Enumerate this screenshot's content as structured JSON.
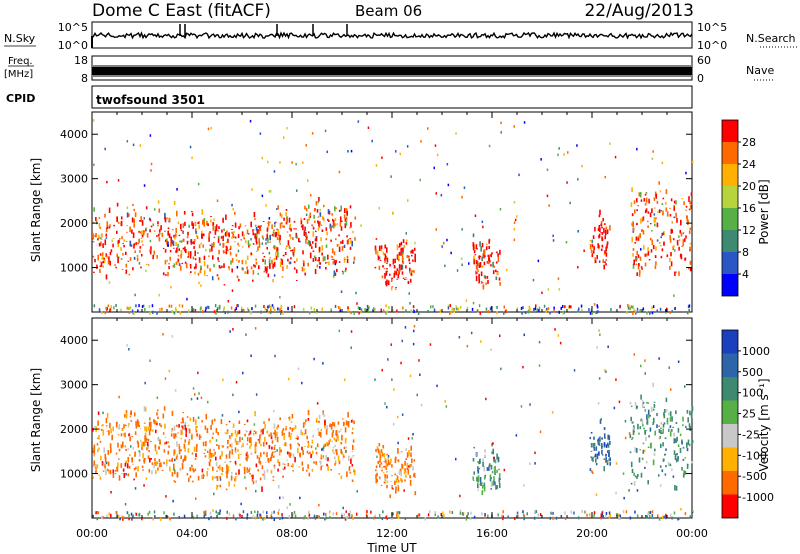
{
  "header": {
    "station": "Dome C East (fitACF)",
    "beam": "Beam 06",
    "date": "22/Aug/2013"
  },
  "strips": {
    "nsky": {
      "label": "N.Sky",
      "ticks": [
        "10^5",
        "10^0"
      ],
      "right_ticks": [
        "10^5",
        "10^0"
      ],
      "right_label": "N.Search"
    },
    "freq": {
      "label_top": "Freq.",
      "label_bottom": "[MHz]",
      "ticks": [
        "18",
        "8"
      ],
      "right_ticks": [
        "60",
        "0"
      ],
      "right_label": "Nave"
    },
    "cpid": {
      "label": "CPID",
      "value": "twofsound 3501"
    }
  },
  "colors": {
    "power_scale": [
      "#0000ff",
      "#2a56c6",
      "#3d8a70",
      "#56b046",
      "#b8d43c",
      "#ffb000",
      "#ff6a00",
      "#ff0000"
    ],
    "velocity_scale": [
      "#1c3fbf",
      "#2e64a8",
      "#3d8a70",
      "#56b046",
      "#c8c8c8",
      "#ffb000",
      "#ff6a00",
      "#ff0000"
    ]
  },
  "chart_data": [
    {
      "type": "heatmap",
      "name": "Power",
      "ylabel": "Slant Range [km]",
      "yticks": [
        1000,
        2000,
        3000,
        4000
      ],
      "ylim": [
        0,
        4500
      ],
      "xlim": [
        0,
        24
      ],
      "colorbar": {
        "label": "Power [dB]",
        "ticks": [
          "4",
          "8",
          "12",
          "16",
          "20",
          "24",
          "28"
        ]
      },
      "clusters": [
        {
          "t": [
            0.0,
            10.5
          ],
          "r": [
            600,
            2400
          ],
          "dominant": "orange-red"
        },
        {
          "t": [
            11.3,
            12.9
          ],
          "r": [
            500,
            1600
          ],
          "dominant": "red"
        },
        {
          "t": [
            15.2,
            16.3
          ],
          "r": [
            500,
            1600
          ],
          "dominant": "red"
        },
        {
          "t": [
            19.9,
            20.7
          ],
          "r": [
            900,
            2200
          ],
          "dominant": "red"
        },
        {
          "t": [
            21.5,
            24.0
          ],
          "r": [
            600,
            2900
          ],
          "dominant": "orange-red"
        }
      ]
    },
    {
      "type": "heatmap",
      "name": "Velocity",
      "ylabel": "Slant Range [km]",
      "xlabel": "Time UT",
      "xticks": [
        "00:00",
        "04:00",
        "08:00",
        "12:00",
        "16:00",
        "20:00",
        "00:00"
      ],
      "yticks": [
        1000,
        2000,
        3000,
        4000
      ],
      "ylim": [
        0,
        4500
      ],
      "xlim": [
        0,
        24
      ],
      "colorbar": {
        "label": "Velocity [m s⁻¹]",
        "ticks": [
          "1000",
          "500",
          "100",
          "25",
          "-25",
          "-100",
          "-500",
          "-1000"
        ]
      },
      "clusters": [
        {
          "t": [
            0.0,
            10.5
          ],
          "r": [
            600,
            2400
          ],
          "dominant": "orange"
        },
        {
          "t": [
            11.3,
            12.9
          ],
          "r": [
            500,
            1600
          ],
          "dominant": "orange"
        },
        {
          "t": [
            15.2,
            16.3
          ],
          "r": [
            500,
            1600
          ],
          "dominant": "green"
        },
        {
          "t": [
            19.9,
            20.7
          ],
          "r": [
            900,
            2200
          ],
          "dominant": "blue-green"
        },
        {
          "t": [
            21.5,
            24.0
          ],
          "r": [
            600,
            2900
          ],
          "dominant": "green"
        }
      ]
    }
  ]
}
